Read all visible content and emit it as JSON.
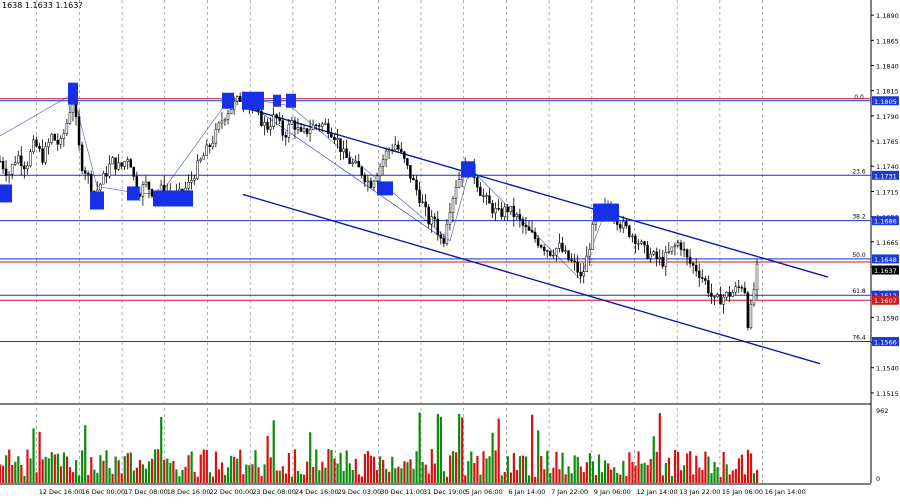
{
  "header": {
    "ohlc_text": "1638 1.1633 1.163?"
  },
  "colors": {
    "background": "#ffffff",
    "grid": "#8c8c8c",
    "candle": "#000000",
    "channel": "#0c1aa8",
    "fib_line": "#1e2ec8",
    "red_level": "#c8102e",
    "marker": "#1630e8",
    "price_tag_blue": "#1a3bd9",
    "price_tag_red": "#d11a1a",
    "current_price_tag": "#000000",
    "volume_up": "#0b8a0b",
    "volume_down": "#d81010"
  },
  "chart_data": [
    {
      "type": "candlestick",
      "title": "",
      "price_scale": {
        "min": 1.1505,
        "max": 1.1905,
        "ticks": [
          1.189,
          1.1865,
          1.184,
          1.1815,
          1.179,
          1.1765,
          1.174,
          1.1715,
          1.169,
          1.1665,
          1.164,
          1.1615,
          1.159,
          1.1565,
          1.154,
          1.1515
        ]
      },
      "x_ticks": [
        "0",
        "12 Dec 16:00",
        "16 Dec 00:00",
        "17 Dec 08:00",
        "18 Dec 16:00",
        "22 Dec 00:00",
        "23 Dec 08:00",
        "24 Dec 16:00",
        "29 Dec 03:00",
        "30 Dec 11:00",
        "31 Dec 19:00",
        "5 Jan 06:00",
        "6 Jan 14:00",
        "7 Jan 22:00",
        "9 Jan 06:00",
        "12 Jan 14:00",
        "13 Jan 22:00",
        "15 Jan 06:00",
        "16 Jan 14:00"
      ],
      "fibonacci": [
        {
          "label": "0.0",
          "value": 1.1805
        },
        {
          "label": "23.6",
          "value": 1.1731
        },
        {
          "label": "38.2",
          "value": 1.1686
        },
        {
          "label": "50.0",
          "value": 1.1648
        },
        {
          "label": "61.8",
          "value": 1.1612
        },
        {
          "label": "76.4",
          "value": 1.1566
        }
      ],
      "red_levels": [
        1.1807,
        1.1645,
        1.1607
      ],
      "price_tags": [
        {
          "text": "1.1805",
          "value": 1.1805,
          "style": "blue"
        },
        {
          "text": "1.1731",
          "value": 1.1731,
          "style": "blue"
        },
        {
          "text": "1.1686",
          "value": 1.1686,
          "style": "blue"
        },
        {
          "text": "1.1648",
          "value": 1.1648,
          "style": "blue"
        },
        {
          "text": "1.1637",
          "value": 1.1637,
          "style": "current"
        },
        {
          "text": "1.1612",
          "value": 1.1612,
          "style": "blue"
        },
        {
          "text": "1.1607",
          "value": 1.1607,
          "style": "red"
        },
        {
          "text": "1.1566",
          "value": 1.1566,
          "style": "blue"
        }
      ],
      "price_series": [
        [
          0.0,
          1.1745
        ],
        [
          0.01,
          1.1732
        ],
        [
          0.02,
          1.1751
        ],
        [
          0.03,
          1.174
        ],
        [
          0.04,
          1.1763
        ],
        [
          0.05,
          1.1748
        ],
        [
          0.06,
          1.177
        ],
        [
          0.07,
          1.176
        ],
        [
          0.08,
          1.179
        ],
        [
          0.085,
          1.1815
        ],
        [
          0.09,
          1.1768
        ],
        [
          0.095,
          1.1742
        ],
        [
          0.1,
          1.1735
        ],
        [
          0.11,
          1.1712
        ],
        [
          0.12,
          1.1728
        ],
        [
          0.13,
          1.1745
        ],
        [
          0.14,
          1.1738
        ],
        [
          0.15,
          1.1752
        ],
        [
          0.155,
          1.173
        ],
        [
          0.16,
          1.1714
        ],
        [
          0.17,
          1.1722
        ],
        [
          0.18,
          1.1712
        ],
        [
          0.19,
          1.1718
        ],
        [
          0.2,
          1.1708
        ],
        [
          0.21,
          1.1712
        ],
        [
          0.22,
          1.1722
        ],
        [
          0.23,
          1.174
        ],
        [
          0.24,
          1.1755
        ],
        [
          0.25,
          1.177
        ],
        [
          0.26,
          1.179
        ],
        [
          0.27,
          1.18
        ],
        [
          0.28,
          1.1808
        ],
        [
          0.29,
          1.1803
        ],
        [
          0.3,
          1.179
        ],
        [
          0.31,
          1.1778
        ],
        [
          0.32,
          1.179
        ],
        [
          0.33,
          1.177
        ],
        [
          0.34,
          1.1785
        ],
        [
          0.35,
          1.177
        ],
        [
          0.36,
          1.1778
        ],
        [
          0.37,
          1.1782
        ],
        [
          0.38,
          1.178
        ],
        [
          0.39,
          1.177
        ],
        [
          0.4,
          1.175
        ],
        [
          0.41,
          1.1742
        ],
        [
          0.42,
          1.1735
        ],
        [
          0.43,
          1.1722
        ],
        [
          0.44,
          1.1738
        ],
        [
          0.45,
          1.1755
        ],
        [
          0.46,
          1.1762
        ],
        [
          0.47,
          1.1745
        ],
        [
          0.48,
          1.1725
        ],
        [
          0.49,
          1.1705
        ],
        [
          0.5,
          1.1682
        ],
        [
          0.505,
          1.169
        ],
        [
          0.51,
          1.1672
        ],
        [
          0.515,
          1.1663
        ],
        [
          0.52,
          1.169
        ],
        [
          0.53,
          1.1722
        ],
        [
          0.54,
          1.1738
        ],
        [
          0.55,
          1.1735
        ],
        [
          0.56,
          1.1712
        ],
        [
          0.57,
          1.17
        ],
        [
          0.58,
          1.1692
        ],
        [
          0.59,
          1.1698
        ],
        [
          0.6,
          1.169
        ],
        [
          0.61,
          1.1678
        ],
        [
          0.62,
          1.167
        ],
        [
          0.63,
          1.1662
        ],
        [
          0.64,
          1.1655
        ],
        [
          0.65,
          1.166
        ],
        [
          0.66,
          1.1648
        ],
        [
          0.67,
          1.164
        ],
        [
          0.675,
          1.1628
        ],
        [
          0.68,
          1.164
        ],
        [
          0.69,
          1.168
        ],
        [
          0.7,
          1.1695
        ],
        [
          0.71,
          1.17
        ],
        [
          0.72,
          1.1684
        ],
        [
          0.73,
          1.1676
        ],
        [
          0.74,
          1.1668
        ],
        [
          0.75,
          1.1655
        ],
        [
          0.76,
          1.165
        ],
        [
          0.77,
          1.1645
        ],
        [
          0.78,
          1.1656
        ],
        [
          0.79,
          1.1665
        ],
        [
          0.8,
          1.1645
        ],
        [
          0.81,
          1.1638
        ],
        [
          0.82,
          1.1625
        ],
        [
          0.83,
          1.1605
        ],
        [
          0.84,
          1.161
        ],
        [
          0.85,
          1.1614
        ],
        [
          0.86,
          1.162
        ],
        [
          0.865,
          1.1625
        ],
        [
          0.87,
          1.158
        ],
        [
          0.875,
          1.161
        ],
        [
          0.88,
          1.1637
        ]
      ],
      "volume": {
        "max_label": "962",
        "min_label": "0"
      }
    }
  ]
}
